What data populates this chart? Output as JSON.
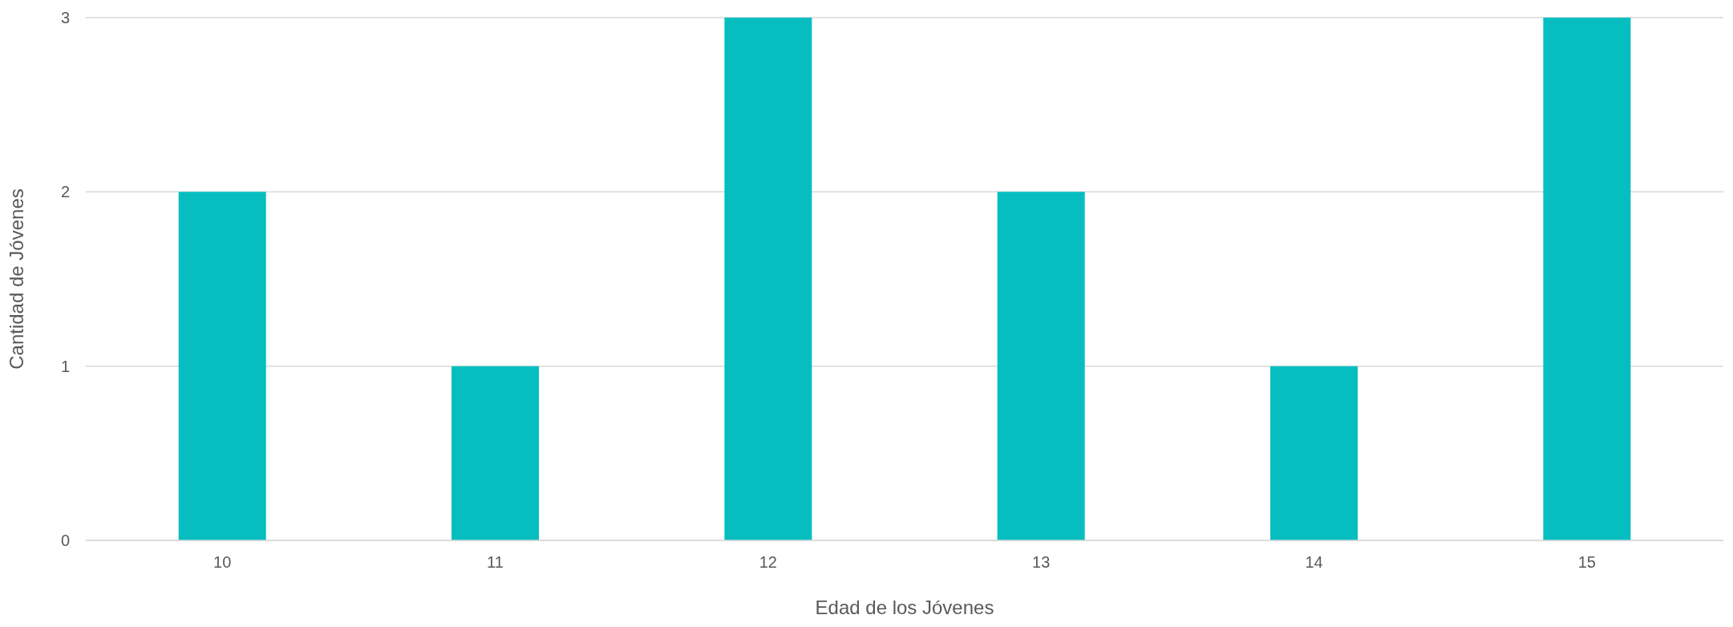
{
  "chart_data": {
    "type": "bar",
    "xlabel": "Edad de los Jóvenes",
    "ylabel": "Cantidad de Jóvenes",
    "categories": [
      "10",
      "11",
      "12",
      "13",
      "14",
      "15"
    ],
    "values": [
      2,
      1,
      3,
      2,
      1,
      3
    ],
    "color": "#06bec0",
    "ylim": [
      0,
      3
    ],
    "yticks": [
      0,
      1,
      2,
      3
    ],
    "grid": "y",
    "legend": false
  }
}
